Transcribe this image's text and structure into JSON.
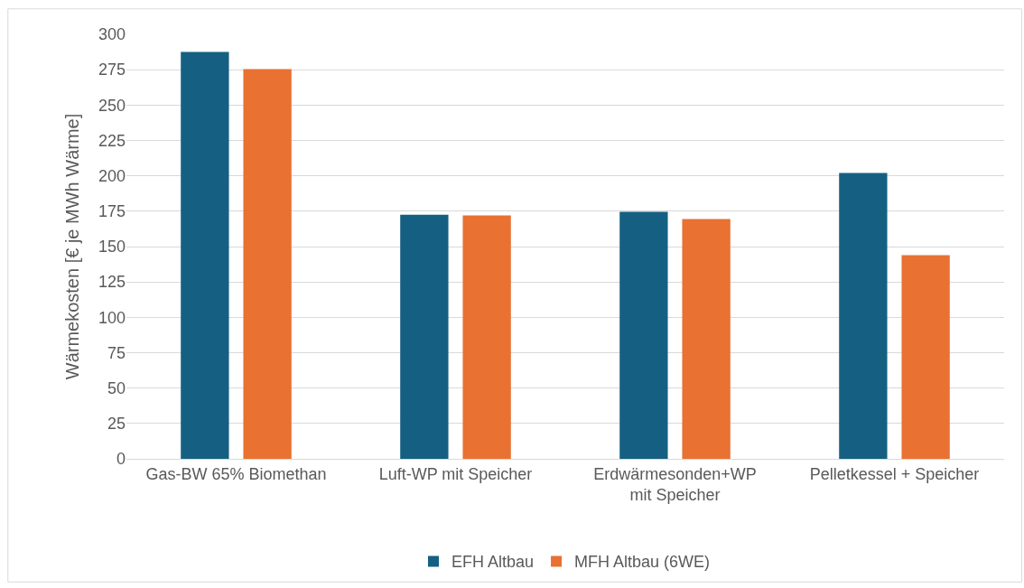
{
  "chart_data": {
    "type": "bar",
    "ylabel": "Wärmekosten [€ je MWh Wärme]",
    "categories": [
      "Gas-BW 65% Biomethan",
      "Luft-WP mit Speicher",
      "Erdwärmesonden+WP mit Speicher",
      "Pelletkessel + Speicher"
    ],
    "series": [
      {
        "name": "EFH Altbau",
        "color": "#156082",
        "values": [
          287.5,
          172.5,
          174.5,
          202
        ]
      },
      {
        "name": "MFH Altbau (6WE)",
        "color": "#e97132",
        "values": [
          275.5,
          172,
          169.5,
          144
        ]
      }
    ],
    "ylim": [
      0,
      300
    ],
    "yticks": [
      0,
      25,
      50,
      75,
      100,
      125,
      150,
      175,
      200,
      225,
      250,
      275,
      300
    ],
    "grid": "y",
    "legend": "bottom"
  }
}
